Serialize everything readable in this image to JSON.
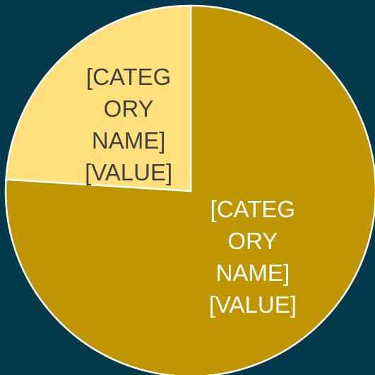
{
  "chart_data": {
    "type": "pie",
    "categories": [
      "[CATEGORY NAME]",
      "[CATEGORY NAME]"
    ],
    "values": [
      76,
      24
    ],
    "value_labels": [
      "[VALUE]",
      "[VALUE]"
    ],
    "colors": [
      "#c09600",
      "#ffe07c"
    ],
    "label_colors": [
      "#ffffff",
      "#404040"
    ]
  }
}
